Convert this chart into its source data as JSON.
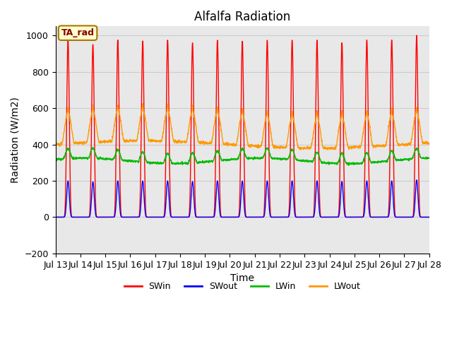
{
  "title": "Alfalfa Radiation",
  "xlabel": "Time",
  "ylabel": "Radiation (W/m2)",
  "ylim": [
    -200,
    1050
  ],
  "colors": {
    "SWin": "#ff0000",
    "SWout": "#0000ff",
    "LWin": "#00bb00",
    "LWout": "#ff9900"
  },
  "annotation_text": "TA_rad",
  "annotation_bg": "#ffffcc",
  "annotation_border": "#aa7700",
  "grid_color": "#cccccc",
  "bg_color": "#e8e8e8",
  "tick_labels": [
    "Jul 13",
    "Jul 14",
    "Jul 15",
    "Jul 16",
    "Jul 17",
    "Jul 18",
    "Jul 19",
    "Jul 20",
    "Jul 21",
    "Jul 22",
    "Jul 23",
    "Jul 24",
    "Jul 25",
    "Jul 26",
    "Jul 27",
    "Jul 28"
  ]
}
